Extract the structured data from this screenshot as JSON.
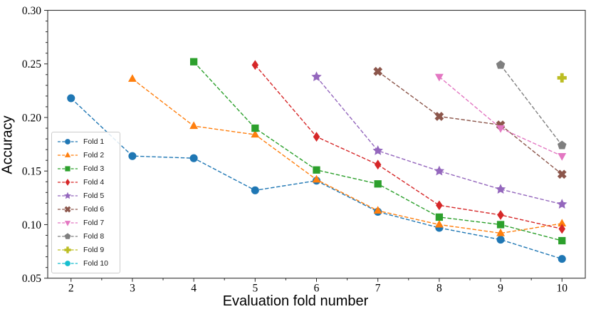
{
  "figure": {
    "xlabel": "Evaluation fold number",
    "ylabel": "Accuracy"
  },
  "chart_data": {
    "type": "line",
    "title": "",
    "xlabel": "Evaluation fold number",
    "ylabel": "Accuracy",
    "xlim": [
      1.62,
      10.38
    ],
    "ylim": [
      0.05,
      0.3
    ],
    "xticks": [
      2,
      3,
      4,
      5,
      6,
      7,
      8,
      9,
      10
    ],
    "yticks": [
      0.05,
      0.1,
      0.15,
      0.2,
      0.25,
      0.3
    ],
    "ytick_labels": [
      "0.05",
      "0.10",
      "0.15",
      "0.20",
      "0.25",
      "0.30"
    ],
    "x_minor_step": 0.5,
    "y_minor_step": 0.01,
    "grid": false,
    "line_style": "dashed",
    "legend_position": "center left",
    "series": [
      {
        "name": "Fold 1",
        "color": "#1f77b4",
        "marker": "circle",
        "x": [
          2,
          3,
          4,
          5,
          6,
          7,
          8,
          9,
          10
        ],
        "y": [
          0.218,
          0.164,
          0.162,
          0.132,
          0.141,
          0.112,
          0.097,
          0.086,
          0.068
        ]
      },
      {
        "name": "Fold 2",
        "color": "#ff7f0e",
        "marker": "triangle-up",
        "x": [
          3,
          4,
          5,
          6,
          7,
          8,
          9,
          10
        ],
        "y": [
          0.236,
          0.192,
          0.184,
          0.142,
          0.113,
          0.1,
          0.092,
          0.101
        ]
      },
      {
        "name": "Fold 3",
        "color": "#2ca02c",
        "marker": "square",
        "x": [
          4,
          5,
          6,
          7,
          8,
          9,
          10
        ],
        "y": [
          0.252,
          0.19,
          0.151,
          0.138,
          0.107,
          0.1,
          0.085
        ]
      },
      {
        "name": "Fold 4",
        "color": "#d62728",
        "marker": "diamond",
        "x": [
          5,
          6,
          7,
          8,
          9,
          10
        ],
        "y": [
          0.249,
          0.182,
          0.156,
          0.118,
          0.109,
          0.096
        ]
      },
      {
        "name": "Fold 5",
        "color": "#9467bd",
        "marker": "star",
        "x": [
          6,
          7,
          8,
          9,
          10
        ],
        "y": [
          0.238,
          0.169,
          0.15,
          0.133,
          0.119
        ]
      },
      {
        "name": "Fold 6",
        "color": "#8c564b",
        "marker": "x-filled",
        "x": [
          7,
          8,
          9,
          10
        ],
        "y": [
          0.243,
          0.201,
          0.193,
          0.147
        ]
      },
      {
        "name": "Fold 7",
        "color": "#e377c2",
        "marker": "triangle-down",
        "x": [
          8,
          9,
          10
        ],
        "y": [
          0.238,
          0.19,
          0.164
        ]
      },
      {
        "name": "Fold 8",
        "color": "#7f7f7f",
        "marker": "pentagon",
        "x": [
          9,
          10
        ],
        "y": [
          0.249,
          0.174
        ]
      },
      {
        "name": "Fold 9",
        "color": "#bcbd22",
        "marker": "plus-filled",
        "x": [
          10
        ],
        "y": [
          0.237
        ]
      },
      {
        "name": "Fold 10",
        "color": "#17becf",
        "marker": "circle",
        "x": [],
        "y": []
      }
    ]
  }
}
